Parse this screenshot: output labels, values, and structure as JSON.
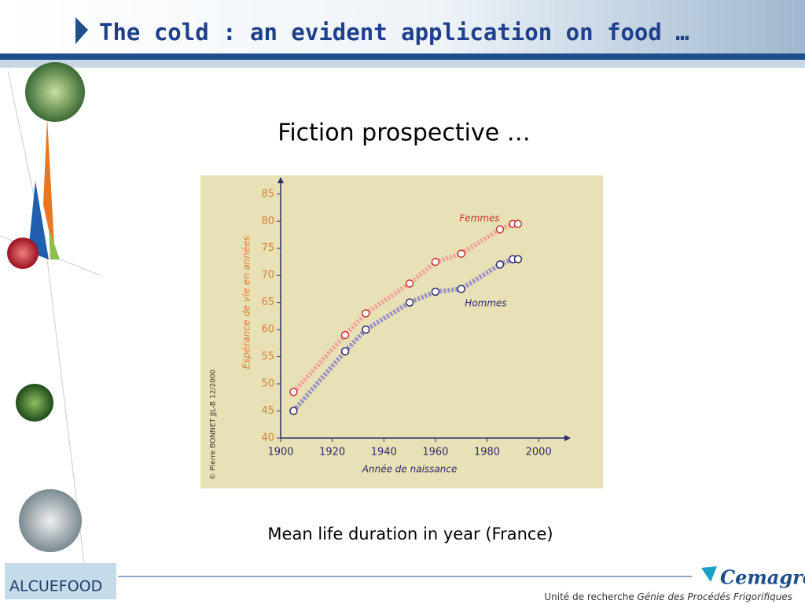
{
  "header": {
    "title": "The cold : an evident application on food …"
  },
  "subtitle": "Fiction prospective …",
  "chart_data": {
    "type": "line",
    "y_label": "Espérance de vie en années",
    "x_label": "Année de naissance",
    "credit": "© Pierre BONNET JJL-B 12/2000",
    "xlim": [
      1900,
      2010
    ],
    "xticks": [
      1900,
      1920,
      1940,
      1960,
      1980,
      2000
    ],
    "ylim": [
      40,
      87
    ],
    "yticks": [
      40,
      45,
      50,
      55,
      60,
      65,
      70,
      75,
      80,
      85
    ],
    "series": [
      {
        "name": "Femmes",
        "color": "#f2a59c",
        "marker_color": "#c8322e",
        "x": [
          1905,
          1925,
          1933,
          1950,
          1960,
          1970,
          1985,
          1990,
          1992
        ],
        "values": [
          48.5,
          59,
          63,
          68.5,
          72.5,
          74,
          78.5,
          79.5,
          79.5
        ]
      },
      {
        "name": "Hommes",
        "color": "#9a90c8",
        "marker_color": "#2c2a6a",
        "x": [
          1905,
          1925,
          1933,
          1950,
          1960,
          1970,
          1985,
          1990,
          1992
        ],
        "values": [
          45,
          56,
          60,
          65,
          67,
          67.5,
          72,
          73,
          73
        ]
      }
    ]
  },
  "caption": "Mean life duration in year (France)",
  "footer": {
    "unit": "Unité de recherche",
    "name": "Génie des Procédés Frigorifiques",
    "logo_left": "ALCUEFOOD",
    "logo_right": "Cemagref"
  }
}
